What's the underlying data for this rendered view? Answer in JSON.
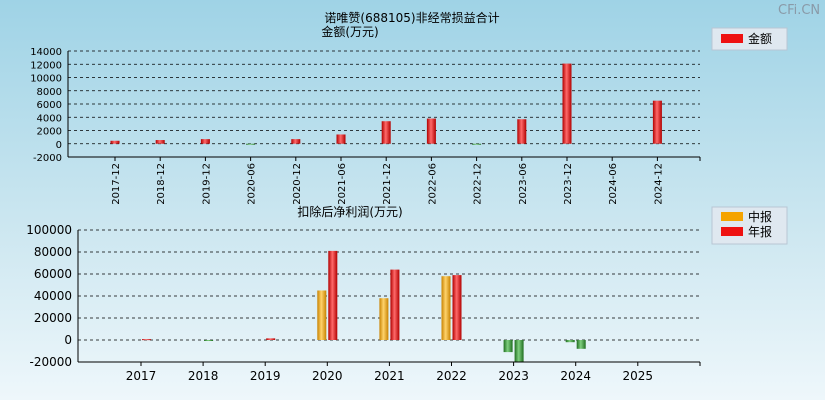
{
  "watermark": "CFi.CN",
  "chart_data": [
    {
      "type": "bar",
      "title": "诺唯赞(688105)非经常损益合计",
      "subtitle": "金额(万元)",
      "categories": [
        "2017-12",
        "2018-12",
        "2019-12",
        "2020-06",
        "2020-12",
        "2021-06",
        "2021-12",
        "2022-06",
        "2022-12",
        "2023-06",
        "2023-12",
        "2024-06",
        "2024-12"
      ],
      "series": [
        {
          "name": "金额",
          "color": "#ee1111",
          "values": [
            450,
            560,
            700,
            -80,
            700,
            1400,
            3400,
            3800,
            -120,
            3700,
            12100,
            0,
            6500
          ]
        }
      ],
      "yticks": [
        14000,
        12000,
        10000,
        8000,
        6000,
        4000,
        2000,
        0,
        -2000
      ],
      "ylim": [
        -2000,
        14000
      ],
      "grid": true,
      "legend": "top-right"
    },
    {
      "type": "bar",
      "title": "扣除后净利润(万元)",
      "categories": [
        "2017",
        "2018",
        "2019",
        "2020",
        "2021",
        "2022",
        "2023",
        "2024",
        "2025"
      ],
      "series": [
        {
          "name": "中报",
          "color": "#f5a300",
          "values": [
            0,
            0,
            0,
            45000,
            38000,
            58000,
            -11000,
            -2000,
            null
          ]
        },
        {
          "name": "年报",
          "color": "#ee1111",
          "values": [
            800,
            -500,
            1500,
            81000,
            64000,
            59000,
            -20000,
            -8000,
            null
          ]
        }
      ],
      "yticks": [
        100000,
        80000,
        60000,
        40000,
        20000,
        0,
        -20000
      ],
      "ylim": [
        -20000,
        100000
      ],
      "grid": true,
      "legend": "top-right"
    }
  ]
}
